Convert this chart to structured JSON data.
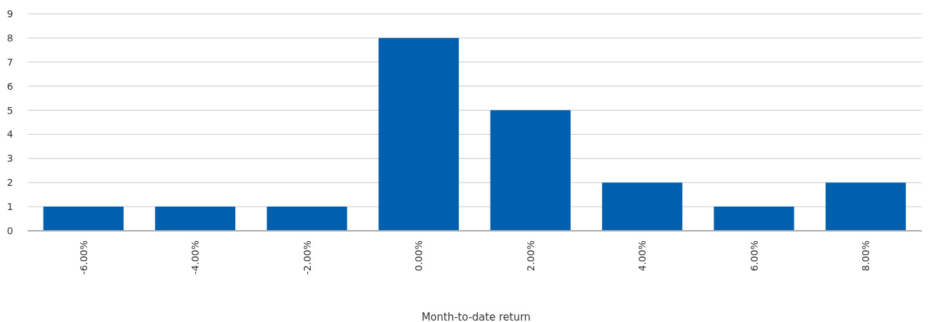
{
  "chart_data": {
    "type": "bar",
    "xlabel": "Month-to-date return",
    "categories": [
      "-6.00%",
      "-4.00%",
      "-2.00%",
      "0.00%",
      "2.00%",
      "4.00%",
      "6.00%",
      "8.00%"
    ],
    "values": [
      1,
      1,
      1,
      8,
      5,
      2,
      1,
      2
    ],
    "color": "#0060ae",
    "ylim": [
      0,
      9
    ],
    "yticks": [
      0,
      1,
      2,
      3,
      4,
      5,
      6,
      7,
      8,
      9
    ],
    "grid": "y"
  }
}
